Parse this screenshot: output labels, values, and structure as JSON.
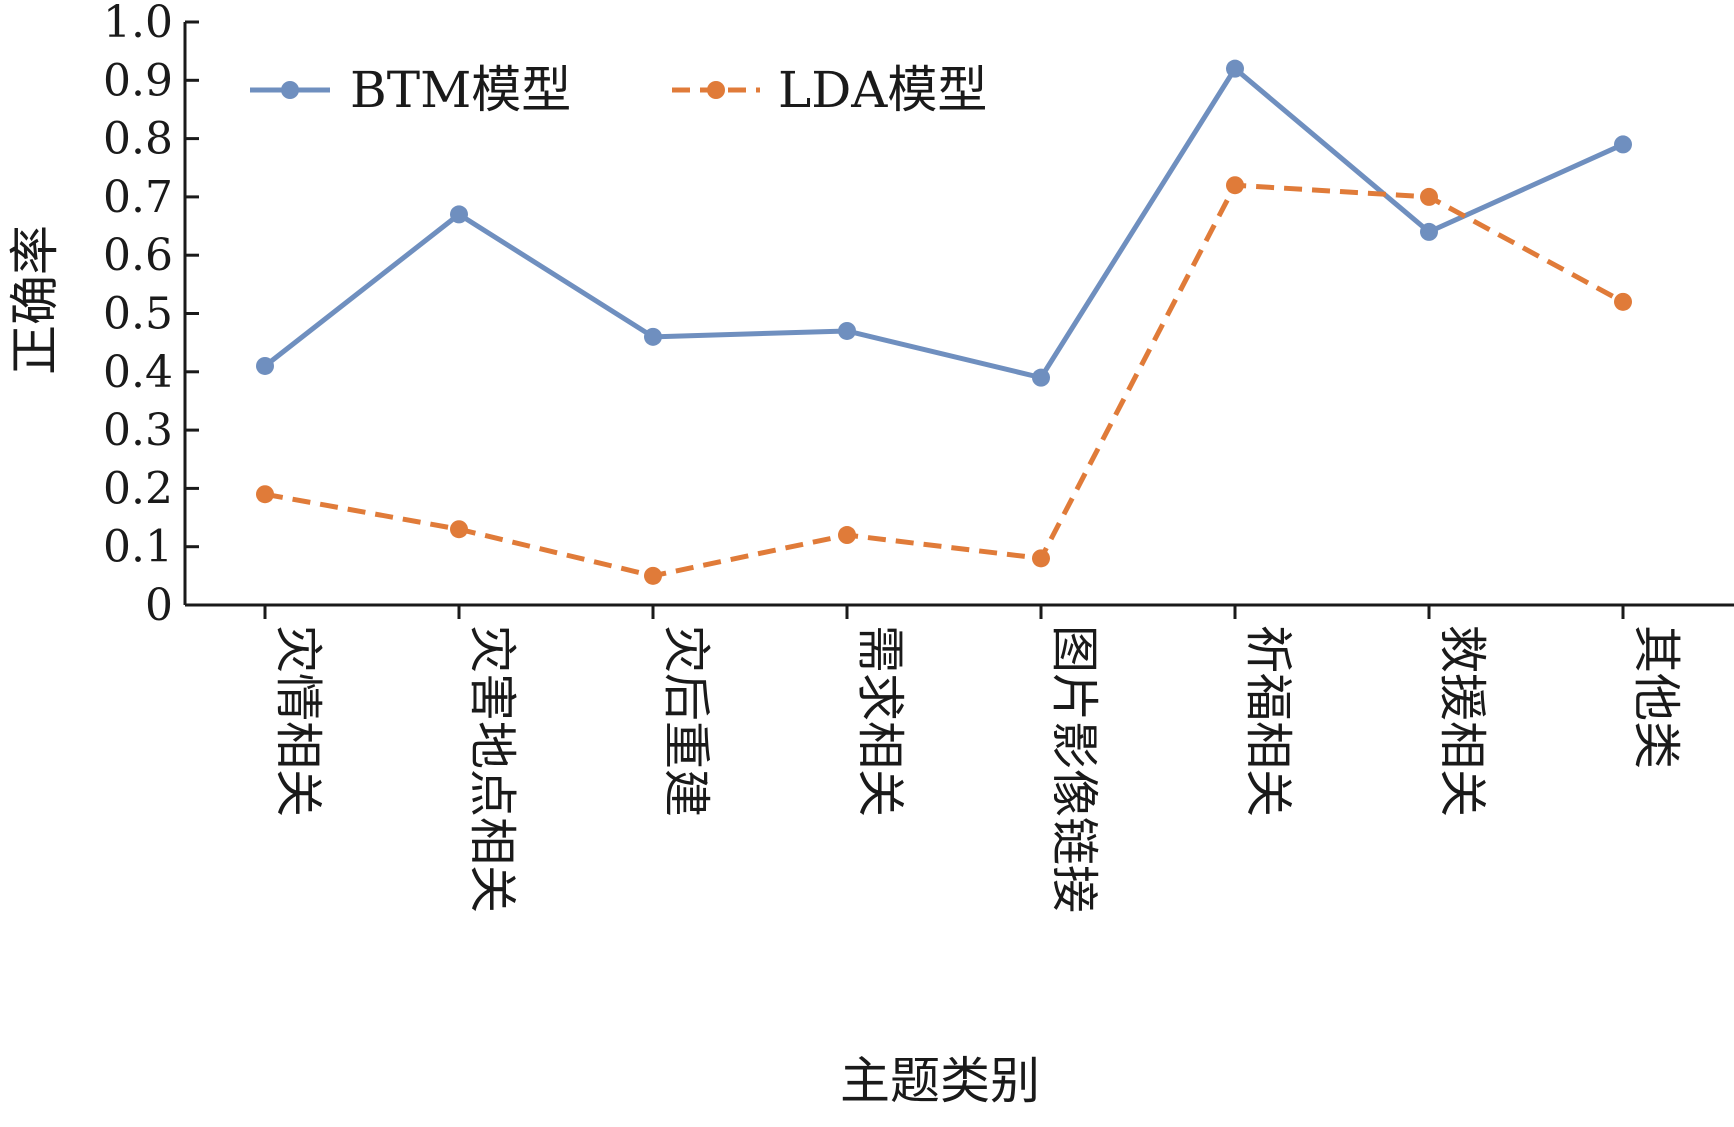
{
  "chart_data": {
    "type": "line",
    "title": "",
    "xlabel": "主题类别",
    "ylabel": "正确率",
    "ylim": [
      0,
      1.0
    ],
    "yticks": [
      "0",
      "0.1",
      "0.2",
      "0.3",
      "0.4",
      "0.5",
      "0.6",
      "0.7",
      "0.8",
      "0.9",
      "1.0"
    ],
    "categories": [
      "灾情相关",
      "灾害地点相关",
      "灾后重建",
      "需求相关",
      "图片影像链接",
      "祈福相关",
      "救援相关",
      "其他类"
    ],
    "series": [
      {
        "name": "BTM模型",
        "color": "#6F8FBF",
        "style": "solid",
        "marker": "circle",
        "values": [
          0.41,
          0.67,
          0.46,
          0.47,
          0.39,
          0.92,
          0.64,
          0.79
        ]
      },
      {
        "name": "LDA模型",
        "color": "#E07B39",
        "style": "dashed",
        "marker": "circle",
        "values": [
          0.19,
          0.13,
          0.05,
          0.12,
          0.08,
          0.72,
          0.7,
          0.52
        ]
      }
    ],
    "legend": {
      "position": "top-left"
    },
    "grid": false
  }
}
